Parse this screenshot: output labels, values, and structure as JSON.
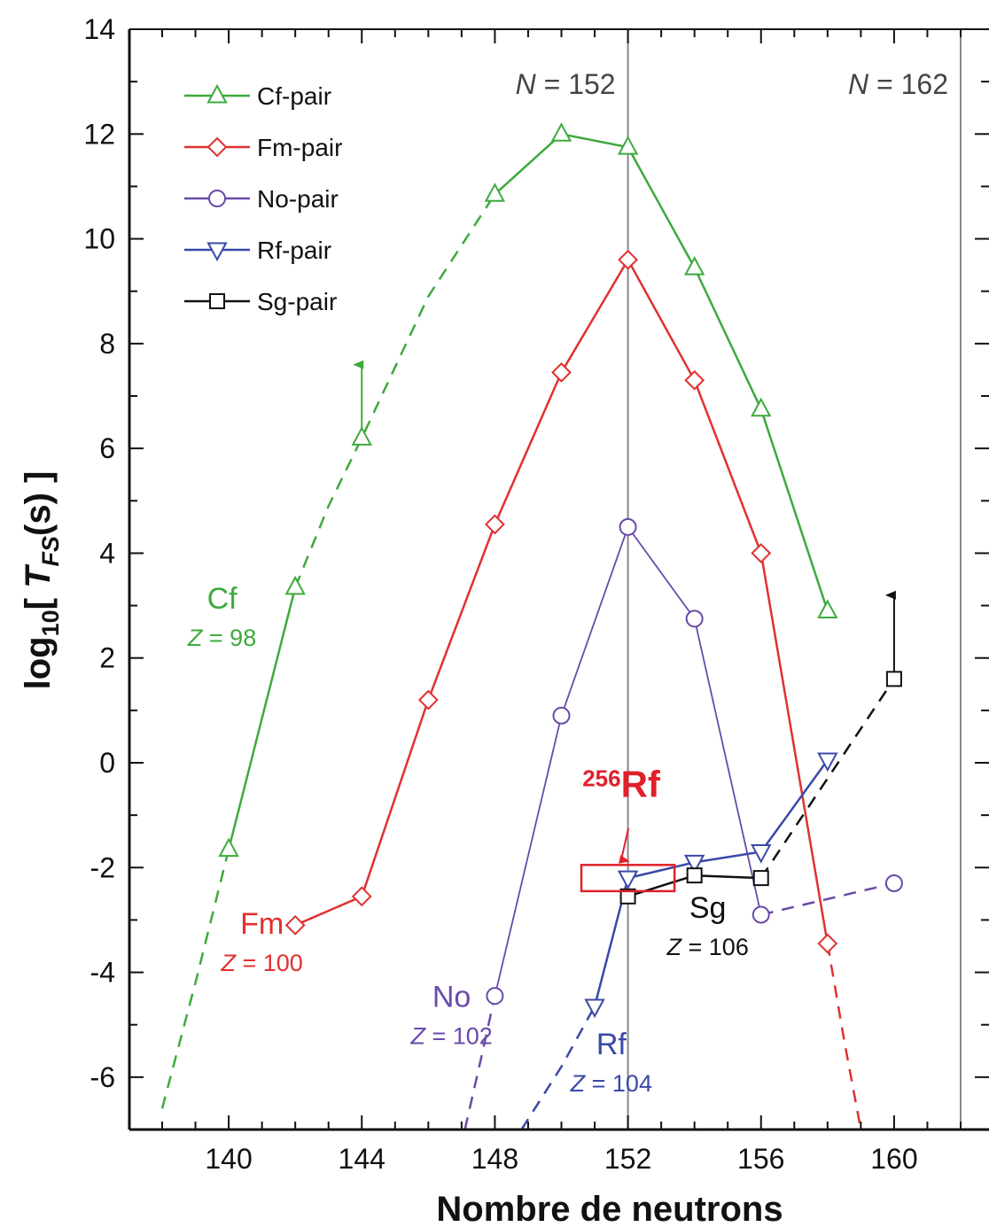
{
  "chart_data": {
    "type": "line",
    "xlabel": "Nombre de neutrons",
    "ylabel": "log10[ TFS(s) ]",
    "ylabel_parts": {
      "log": "log",
      "sub10": "10",
      "open": "[ ",
      "T": "T",
      "FS": "FS",
      "unit": "(s) ]"
    },
    "xlim": [
      136,
      163
    ],
    "ylim": [
      -7,
      14
    ],
    "x_ticks": [
      140,
      144,
      148,
      152,
      156,
      160
    ],
    "x_tick_labels": [
      "140",
      "144",
      "148",
      "152",
      "156",
      "160"
    ],
    "y_ticks": [
      -6,
      -4,
      -2,
      0,
      2,
      4,
      6,
      8,
      10,
      12,
      14
    ],
    "y_tick_labels": [
      "-6",
      "-4",
      "-2",
      "0",
      "2",
      "4",
      "6",
      "8",
      "10",
      "12",
      "14"
    ],
    "reference_lines": [
      {
        "x": 152,
        "label": "N = 152",
        "N": "N",
        "eq": " = 152"
      },
      {
        "x": 162,
        "label": "N = 162",
        "N": "N",
        "eq": " = 162"
      }
    ],
    "series": [
      {
        "name": "Cf-pair",
        "color": "#3daa3d",
        "marker": "triangle-up",
        "points": [
          [
            140,
            -1.65
          ],
          [
            142,
            3.35
          ],
          [
            144,
            6.2
          ],
          [
            148,
            10.85
          ],
          [
            150,
            12.0
          ],
          [
            152,
            11.75
          ],
          [
            154,
            9.45
          ],
          [
            156,
            6.75
          ],
          [
            158,
            2.9
          ]
        ],
        "solid_segments": [
          [
            0,
            1
          ],
          [
            3,
            4
          ],
          [
            4,
            5
          ],
          [
            5,
            6
          ],
          [
            6,
            7
          ],
          [
            7,
            8
          ]
        ],
        "dashed_extrapolation": [
          [
            138,
            -6.6
          ],
          [
            139,
            -4.2
          ],
          [
            140,
            -1.65
          ]
        ],
        "dashed_bridge": [
          [
            142,
            3.35
          ],
          [
            143,
            4.9
          ],
          [
            144,
            6.2
          ],
          [
            146,
            8.9
          ],
          [
            148,
            10.85
          ]
        ],
        "lower_limit_arrow": {
          "x": 144,
          "from": 6.2,
          "to": 7.7
        },
        "annotation": {
          "name": "Cf",
          "Z": "Z",
          "zval": " = 98",
          "x": 139.8,
          "y": 2.6
        }
      },
      {
        "name": "Fm-pair",
        "color": "#e03030",
        "marker": "diamond",
        "points": [
          [
            142,
            -3.1
          ],
          [
            144,
            -2.55
          ],
          [
            146,
            1.2
          ],
          [
            148,
            4.55
          ],
          [
            150,
            7.45
          ],
          [
            152,
            9.6
          ],
          [
            154,
            7.3
          ],
          [
            156,
            4.0
          ],
          [
            158,
            -3.45
          ]
        ],
        "dashed_extrapolation": [
          [
            158,
            -3.45
          ],
          [
            158.5,
            -5.3
          ],
          [
            159,
            -7.0
          ]
        ],
        "annotation": {
          "name": "Fm",
          "Z": "Z",
          "zval": " = 100",
          "x": 141.0,
          "y": -3.6
        }
      },
      {
        "name": "No-pair",
        "color": "#6a4aa8",
        "marker": "circle",
        "points": [
          [
            148,
            -4.45
          ],
          [
            150,
            0.9
          ],
          [
            152,
            4.5
          ],
          [
            154,
            2.75
          ],
          [
            156,
            -2.9
          ]
        ],
        "extra_points": [
          [
            160,
            -2.3
          ]
        ],
        "dashed_extrapolation": [
          [
            147.1,
            -7.0
          ],
          [
            147.6,
            -5.6
          ],
          [
            148,
            -4.45
          ]
        ],
        "dashed_bridge": [
          [
            156,
            -2.9
          ],
          [
            158,
            -2.6
          ],
          [
            160,
            -2.3
          ]
        ],
        "annotation": {
          "name": "No",
          "Z": "Z",
          "zval": " = 102",
          "x": 146.7,
          "y": -5.0
        }
      },
      {
        "name": "Rf-pair",
        "color": "#3a48a8",
        "marker": "triangle-down",
        "points": [
          [
            151,
            -4.65
          ],
          [
            152,
            -2.2
          ],
          [
            154,
            -1.9
          ],
          [
            156,
            -1.7
          ],
          [
            158,
            0.05
          ]
        ],
        "dashed_extrapolation": [
          [
            148.8,
            -7.0
          ],
          [
            150,
            -5.8
          ],
          [
            151,
            -4.65
          ]
        ],
        "annotation": {
          "name": "Rf",
          "Z": "Z",
          "zval": " = 104",
          "x": 151.5,
          "y": -5.9
        }
      },
      {
        "name": "Sg-pair",
        "color": "#111111",
        "marker": "square",
        "points": [
          [
            152,
            -2.55
          ],
          [
            154,
            -2.15
          ],
          [
            156,
            -2.2
          ]
        ],
        "extra_points": [
          [
            160,
            1.6
          ]
        ],
        "dashed_bridge": [
          [
            156,
            -2.2
          ],
          [
            158,
            -0.3
          ],
          [
            160,
            1.6
          ]
        ],
        "lower_limit_arrow": {
          "x": 160,
          "from": 1.6,
          "to": 3.3
        },
        "annotation": {
          "name": "Sg",
          "Z": "Z",
          "zval": " = 106",
          "x": 154.4,
          "y": -3.3
        }
      }
    ],
    "highlight": {
      "label": "256Rf",
      "mass": "256",
      "symbol": "Rf",
      "color": "#e0202a",
      "box_x": [
        150.6,
        153.4
      ],
      "box_y": [
        -2.45,
        -1.95
      ],
      "label_x": 151.8,
      "label_y": -0.65,
      "arrow_from": [
        151.8,
        -1.25
      ],
      "arrow_to": [
        151.8,
        -1.95
      ]
    },
    "legend": {
      "placement": "top-left"
    }
  }
}
